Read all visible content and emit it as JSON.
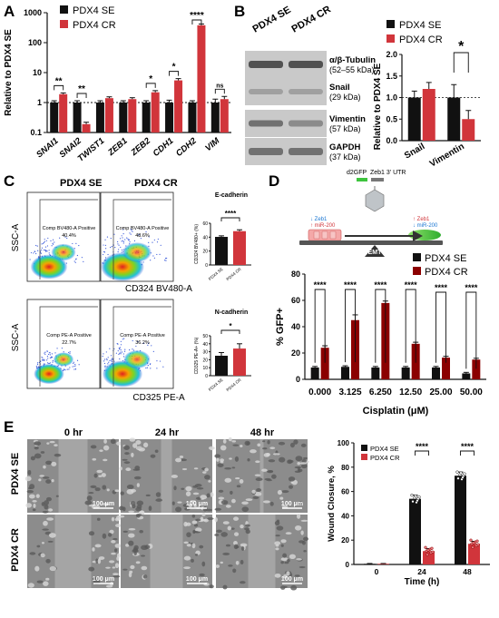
{
  "panels": {
    "A": "A",
    "B": "B",
    "C": "C",
    "D": "D",
    "E": "E"
  },
  "colors": {
    "se": "#111111",
    "cr": "#d1353b"
  },
  "panel_a": {
    "legend_se": "PDX4 SE",
    "legend_cr": "PDX4 CR",
    "ylabel": "Relative to PDX4 SE",
    "chart_data": {
      "type": "bar",
      "yscale": "log",
      "ylim": [
        0.1,
        1000
      ],
      "yticks": [
        "0.1",
        "1",
        "10",
        "100",
        "1000"
      ],
      "categories": [
        "SNAI1",
        "SNAI2",
        "TWIST1",
        "ZEB1",
        "ZEB2",
        "CDH1",
        "CDH2",
        "VIM"
      ],
      "series": [
        {
          "name": "PDX4 SE",
          "values": [
            1,
            1,
            1,
            1,
            1,
            1,
            1,
            1
          ],
          "err": [
            0.15,
            0.15,
            0.15,
            0.15,
            0.15,
            0.2,
            0.15,
            0.3
          ]
        },
        {
          "name": "PDX4 CR",
          "values": [
            1.9,
            0.19,
            1.4,
            1.3,
            2.2,
            5.5,
            380,
            1.3
          ],
          "err": [
            0.2,
            0.03,
            0.15,
            0.15,
            0.3,
            0.8,
            40,
            0.3
          ]
        }
      ],
      "significance": [
        "**",
        "**",
        "",
        "",
        "*",
        "*",
        "****",
        "ns"
      ]
    }
  },
  "panel_b": {
    "blot_col_se": "PDX4 SE",
    "blot_col_cr": "PDX4 CR",
    "blots": [
      {
        "name": "α/β-Tubulin",
        "size": "(52–55 kDa)"
      },
      {
        "name": "Snail",
        "size": "(29 kDa)"
      },
      {
        "name": "Vimentin",
        "size": "(57 kDa)"
      },
      {
        "name": "GAPDH",
        "size": "(37 kDa)"
      }
    ],
    "legend_se": "PDX4 SE",
    "legend_cr": "PDX4 CR",
    "ylabel": "Relative to PDX4 SE",
    "chart_data": {
      "type": "bar",
      "ylim": [
        0,
        2.0
      ],
      "yticks": [
        "0.0",
        "0.5",
        "1.0",
        "1.5",
        "2.0"
      ],
      "categories": [
        "Snail",
        "Vimentin"
      ],
      "series": [
        {
          "name": "PDX4 SE",
          "values": [
            1.0,
            1.0
          ],
          "err": [
            0.15,
            0.3
          ]
        },
        {
          "name": "PDX4 CR",
          "values": [
            1.2,
            0.5
          ],
          "err": [
            0.15,
            0.2
          ]
        }
      ],
      "significance": [
        "",
        "*"
      ]
    }
  },
  "panel_c": {
    "col_se": "PDX4 SE",
    "col_cr": "PDX4 CR",
    "ylabel": "SSC-A",
    "xlabel_top": "CD324 BV480-A",
    "xlabel_bottom": "CD325 PE-A",
    "gates": {
      "top_se": [
        "Comp BV480-A Positive",
        "40.4%"
      ],
      "top_cr": [
        "Comp BV480-A Positive",
        "48.6%"
      ],
      "bot_se": [
        "Comp PE-A Positive",
        "22.7%"
      ],
      "bot_cr": [
        "Comp PE-A Positive",
        "36.2%"
      ]
    },
    "charts": [
      {
        "type": "bar",
        "title": "E-cadherin",
        "ylabel": "CD324 BV480+ (%)",
        "categories": [
          "PDX4 SE",
          "PDX4 CR"
        ],
        "values": [
          40.4,
          48.6
        ],
        "err": [
          1.5,
          2
        ],
        "ylim": [
          0,
          60
        ],
        "yticks": [
          "0",
          "20",
          "40",
          "60"
        ],
        "significance": "****"
      },
      {
        "type": "bar",
        "title": "N-cadherin",
        "ylabel": "CD325 PE-A+ (%)",
        "categories": [
          "PDX4 SE",
          "PDX4 CR"
        ],
        "values": [
          25,
          34
        ],
        "err": [
          4,
          6
        ],
        "ylim": [
          0,
          50
        ],
        "yticks": [
          "0",
          "10",
          "20",
          "30",
          "40",
          "50"
        ],
        "significance": "*"
      }
    ]
  },
  "panel_d": {
    "schematic": {
      "reporter_a": "d2GFP",
      "reporter_b": "Zeb1 3' UTR",
      "left_a": "↓ Zeb1",
      "left_b": "↑ miR-200",
      "right_a": "↑ Zeb1",
      "right_b": "↓ miR-200",
      "arrow": "EMT"
    },
    "legend_se": "PDX4 SE",
    "legend_cr": "PDX4 CR",
    "chart_data": {
      "type": "bar",
      "ylabel": "% GFP+",
      "xlabel": "Cisplatin (μM)",
      "ylim": [
        0,
        80
      ],
      "yticks": [
        "0",
        "20",
        "40",
        "60",
        "80"
      ],
      "categories": [
        "0.000",
        "3.125",
        "6.250",
        "12.50",
        "25.00",
        "50.00"
      ],
      "series": [
        {
          "name": "PDX4 SE",
          "values": [
            9,
            9.5,
            9,
            9,
            9,
            4.5
          ],
          "err": [
            0.8,
            0.8,
            0.8,
            0.8,
            0.8,
            0.8
          ]
        },
        {
          "name": "PDX4 CR",
          "values": [
            24,
            45,
            58,
            27,
            16.5,
            15
          ],
          "err": [
            1.5,
            4,
            1.5,
            1.2,
            1,
            1
          ]
        }
      ],
      "significance": [
        "****",
        "****",
        "****",
        "****",
        "****",
        "****"
      ]
    }
  },
  "panel_e": {
    "times": [
      "0 hr",
      "24 hr",
      "48 hr"
    ],
    "rows": [
      "PDX4 SE",
      "PDX4 CR"
    ],
    "scale": "100 μm",
    "legend_se": "PDX4 SE",
    "legend_cr": "PDX4 CR",
    "chart_data": {
      "type": "bar",
      "ylabel": "Wound Closure, %",
      "xlabel": "Time (h)",
      "ylim": [
        0,
        100
      ],
      "yticks": [
        "0",
        "20",
        "40",
        "60",
        "80",
        "100"
      ],
      "categories": [
        "0",
        "24",
        "48"
      ],
      "series": [
        {
          "name": "PDX4 SE",
          "values": [
            0.5,
            54,
            73
          ],
          "err": [
            0.3,
            3,
            3
          ]
        },
        {
          "name": "PDX4 CR",
          "values": [
            0.5,
            11,
            17
          ],
          "err": [
            0.3,
            2,
            2
          ]
        }
      ],
      "significance": [
        "",
        "****",
        "****"
      ]
    }
  }
}
